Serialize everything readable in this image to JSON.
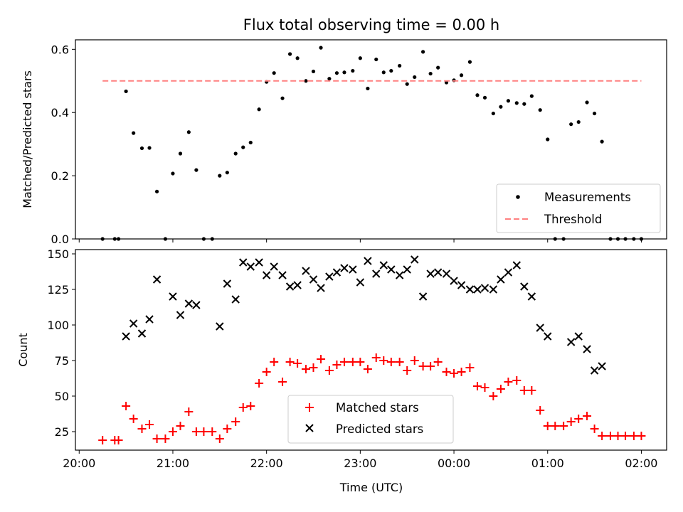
{
  "figure": {
    "title": "Flux total observing time = 0.00 h",
    "xlabel": "Time (UTC)"
  },
  "chart_data": [
    {
      "type": "scatter",
      "name": "top",
      "ylabel": "Matched/Predicted stars",
      "x_unit": "hours since 20:00 UTC",
      "xlim": [
        -0.04,
        6.27
      ],
      "ylim": [
        0,
        0.63
      ],
      "yticks": [
        0.0,
        0.2,
        0.4,
        0.6
      ],
      "ytick_labels": [
        "0.0",
        "0.2",
        "0.4",
        "0.6"
      ],
      "legend_loc": "lower-right",
      "series": [
        {
          "name": "Measurements",
          "marker": "dot",
          "color": "#000000",
          "x": [
            0.25,
            0.38,
            0.42,
            0.5,
            0.58,
            0.67,
            0.75,
            0.83,
            0.92,
            1.0,
            1.08,
            1.17,
            1.25,
            1.33,
            1.42,
            1.5,
            1.58,
            1.67,
            1.75,
            1.83,
            1.92,
            2.0,
            2.08,
            2.17,
            2.25,
            2.33,
            2.42,
            2.5,
            2.58,
            2.67,
            2.75,
            2.83,
            2.92,
            3.0,
            3.08,
            3.17,
            3.25,
            3.33,
            3.42,
            3.5,
            3.58,
            3.67,
            3.75,
            3.83,
            3.92,
            4.0,
            4.08,
            4.17,
            4.25,
            4.33,
            4.42,
            4.5,
            4.58,
            4.67,
            4.75,
            4.83,
            4.92,
            5.0,
            5.08,
            5.17,
            5.25,
            5.33,
            5.42,
            5.5,
            5.58,
            5.67,
            5.75,
            5.83,
            5.92,
            6.0
          ],
          "y": [
            0,
            0,
            0,
            0.467,
            0.335,
            0.287,
            0.288,
            0.15,
            0,
            0.207,
            0.27,
            0.338,
            0.218,
            0,
            0,
            0.2,
            0.21,
            0.27,
            0.29,
            0.305,
            0.41,
            0.497,
            0.525,
            0.445,
            0.585,
            0.572,
            0.5,
            0.53,
            0.605,
            0.507,
            0.525,
            0.527,
            0.532,
            0.572,
            0.476,
            0.568,
            0.527,
            0.532,
            0.548,
            0.49,
            0.512,
            0.592,
            0.523,
            0.542,
            0.495,
            0.502,
            0.518,
            0.56,
            0.455,
            0.447,
            0.397,
            0.418,
            0.437,
            0.43,
            0.427,
            0.452,
            0.408,
            0.315,
            0,
            0,
            0.363,
            0.37,
            0.432,
            0.397,
            0.308,
            0,
            0,
            0,
            0,
            0
          ]
        },
        {
          "name": "Threshold",
          "marker": "dashed-line",
          "color": "#ff8080",
          "x": [
            0.25,
            6.0
          ],
          "y": [
            0.5,
            0.5
          ]
        }
      ]
    },
    {
      "type": "scatter",
      "name": "bottom",
      "ylabel": "Count",
      "x_unit": "hours since 20:00 UTC",
      "xlim": [
        -0.04,
        6.27
      ],
      "ylim": [
        12,
        153
      ],
      "yticks": [
        25,
        50,
        75,
        100,
        125,
        150
      ],
      "ytick_labels": [
        "25",
        "50",
        "75",
        "100",
        "125",
        "150"
      ],
      "xticks": [
        0,
        1,
        2,
        3,
        4,
        5,
        6
      ],
      "xtick_labels": [
        "20:00",
        "21:00",
        "22:00",
        "23:00",
        "00:00",
        "01:00",
        "02:00"
      ],
      "legend_loc": "lower-center",
      "series": [
        {
          "name": "Matched stars",
          "marker": "plus",
          "color": "#ff0000",
          "x": [
            0.25,
            0.38,
            0.42,
            0.5,
            0.58,
            0.67,
            0.75,
            0.83,
            0.92,
            1.0,
            1.08,
            1.17,
            1.25,
            1.33,
            1.42,
            1.5,
            1.58,
            1.67,
            1.75,
            1.83,
            1.92,
            2.0,
            2.08,
            2.17,
            2.25,
            2.33,
            2.42,
            2.5,
            2.58,
            2.67,
            2.75,
            2.83,
            2.92,
            3.0,
            3.08,
            3.17,
            3.25,
            3.33,
            3.42,
            3.5,
            3.58,
            3.67,
            3.75,
            3.83,
            3.92,
            4.0,
            4.08,
            4.17,
            4.25,
            4.33,
            4.42,
            4.5,
            4.58,
            4.67,
            4.75,
            4.83,
            4.92,
            5.0,
            5.08,
            5.17,
            5.25,
            5.33,
            5.42,
            5.5,
            5.58,
            5.67,
            5.75,
            5.83,
            5.92,
            6.0
          ],
          "y": [
            19,
            19,
            19,
            43,
            34,
            27,
            30,
            20,
            20,
            25,
            29,
            39,
            25,
            25,
            25,
            20,
            27,
            32,
            42,
            43,
            59,
            67,
            74,
            60,
            74,
            73,
            69,
            70,
            76,
            68,
            72,
            74,
            74,
            74,
            69,
            77,
            75,
            74,
            74,
            68,
            75,
            71,
            71,
            74,
            67,
            66,
            67,
            70,
            57,
            56,
            50,
            55,
            60,
            61,
            54,
            54,
            40,
            29,
            29,
            29,
            32,
            34,
            36,
            27,
            22,
            22,
            22,
            22,
            22,
            22
          ]
        },
        {
          "name": "Predicted stars",
          "marker": "x",
          "color": "#000000",
          "x": [
            0.5,
            0.58,
            0.67,
            0.75,
            0.83,
            1.0,
            1.08,
            1.17,
            1.25,
            1.5,
            1.58,
            1.67,
            1.75,
            1.83,
            1.92,
            2.0,
            2.08,
            2.17,
            2.25,
            2.33,
            2.42,
            2.5,
            2.58,
            2.67,
            2.75,
            2.83,
            2.92,
            3.0,
            3.08,
            3.17,
            3.25,
            3.33,
            3.42,
            3.5,
            3.58,
            3.67,
            3.75,
            3.83,
            3.92,
            4.0,
            4.08,
            4.17,
            4.25,
            4.33,
            4.42,
            4.5,
            4.58,
            4.67,
            4.75,
            4.83,
            4.92,
            5.0,
            5.25,
            5.33,
            5.42,
            5.5,
            5.58
          ],
          "y": [
            92,
            101,
            94,
            104,
            132,
            120,
            107,
            115,
            114,
            99,
            129,
            118,
            144,
            141,
            144,
            135,
            141,
            135,
            127,
            128,
            138,
            132,
            126,
            134,
            137,
            140,
            139,
            130,
            145,
            136,
            142,
            139,
            135,
            139,
            146,
            120,
            136,
            137,
            136,
            131,
            128,
            125,
            125,
            126,
            125,
            132,
            137,
            142,
            127,
            120,
            98,
            92,
            88,
            92,
            83,
            68,
            71
          ]
        }
      ]
    }
  ]
}
